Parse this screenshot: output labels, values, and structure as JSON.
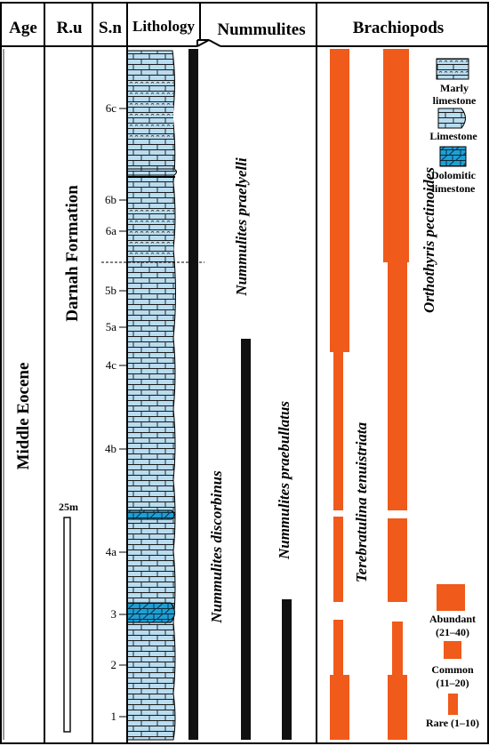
{
  "header": {
    "age": "Age",
    "rock_unit": "R.u",
    "sample_no": "S.n",
    "lithology": "Lithology",
    "nummulites": "Nummulites",
    "brachiopods": "Brachiopods"
  },
  "age_label": "Middle Eocene",
  "rock_unit_label": "Darnah Formation",
  "scale_bar_label": "25m",
  "samples": [
    "6c",
    "6b",
    "6a",
    "5b",
    "5a",
    "4c",
    "4b",
    "4a",
    "3",
    "2",
    "1"
  ],
  "species": {
    "n_discorbinus": "Nummulites discorbinus",
    "n_praelyelli": "Nummulites praelyelli",
    "n_praebullatus": "Nummulites praebullatus",
    "t_tenuistriata": "Terebratulina tenuistriata",
    "o_pectinoides": "Orthothyris pectinoides"
  },
  "legend": {
    "lithology": [
      {
        "label_lines": [
          "Marly",
          "limestone"
        ],
        "icon": "marly-limestone-swatch"
      },
      {
        "label_lines": [
          "Limestone"
        ],
        "icon": "limestone-swatch"
      },
      {
        "label_lines": [
          "Dolomitic",
          "limestone"
        ],
        "icon": "dolomitic-limestone-swatch"
      }
    ],
    "abundance": [
      {
        "label_lines": [
          "Abundant",
          "(21–40)"
        ],
        "level": "abundant"
      },
      {
        "label_lines": [
          "Common",
          "(11–20)"
        ],
        "level": "common"
      },
      {
        "label_lines": [
          "Rare (1–10)"
        ],
        "level": "rare"
      }
    ]
  },
  "colors": {
    "limestone_fill": "#b8dcf0",
    "dolomite_fill": "#1e9fd6",
    "range_bar": "#111111",
    "abundance": "#f05a1a"
  }
}
